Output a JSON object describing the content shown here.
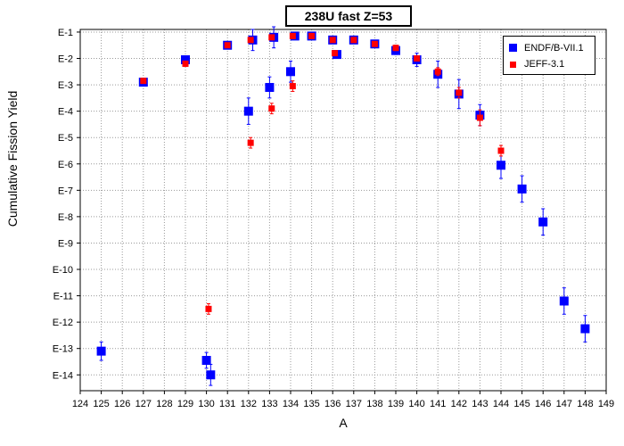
{
  "chart_data": {
    "type": "scatter",
    "title": "238U fast Z=53",
    "xlabel": "A",
    "ylabel": "Cumulative Fission Yield",
    "xlim": [
      124,
      149
    ],
    "ylim_exponent": [
      -14.6,
      -0.9
    ],
    "y_scale": "log",
    "x_ticks": [
      124,
      125,
      126,
      127,
      128,
      129,
      130,
      131,
      132,
      133,
      134,
      135,
      136,
      137,
      138,
      139,
      140,
      141,
      142,
      143,
      144,
      145,
      146,
      147,
      148,
      149
    ],
    "y_tick_labels": [
      "E-1",
      "E-2",
      "E-3",
      "E-4",
      "E-5",
      "E-6",
      "E-7",
      "E-8",
      "E-9",
      "E-10",
      "E-11",
      "E-12",
      "E-13",
      "E-14"
    ],
    "grid": true,
    "legend_position": "top-right",
    "series": [
      {
        "name": "ENDF/B-VII.1",
        "color": "#0000ff",
        "marker": "square-large",
        "points": [
          {
            "x": 125,
            "logy": -13.1,
            "err": 0.35
          },
          {
            "x": 127,
            "logy": -2.9,
            "err": 0.1
          },
          {
            "x": 129,
            "logy": -2.05,
            "err": 0.15
          },
          {
            "x": 130,
            "logy": -13.45,
            "err": 0.3
          },
          {
            "x": 130.2,
            "logy": -14.0,
            "err": 0.4
          },
          {
            "x": 131,
            "logy": -1.5,
            "err": 0.1
          },
          {
            "x": 132,
            "logy": -4.0,
            "err": 0.5
          },
          {
            "x": 132.2,
            "logy": -1.3,
            "err": 0.4
          },
          {
            "x": 133,
            "logy": -3.1,
            "err": 0.4
          },
          {
            "x": 133.2,
            "logy": -1.2,
            "err": 0.4
          },
          {
            "x": 134,
            "logy": -2.5,
            "err": 0.4
          },
          {
            "x": 134.2,
            "logy": -1.15,
            "err": 0.1
          },
          {
            "x": 135,
            "logy": -1.15,
            "err": 0.1
          },
          {
            "x": 136,
            "logy": -1.3,
            "err": 0.1
          },
          {
            "x": 136.2,
            "logy": -1.85,
            "err": 0.1
          },
          {
            "x": 137,
            "logy": -1.3,
            "err": 0.1
          },
          {
            "x": 138,
            "logy": -1.45,
            "err": 0.1
          },
          {
            "x": 139,
            "logy": -1.7,
            "err": 0.15
          },
          {
            "x": 140,
            "logy": -2.05,
            "err": 0.25
          },
          {
            "x": 141,
            "logy": -2.6,
            "err": 0.5
          },
          {
            "x": 142,
            "logy": -3.35,
            "err": 0.55
          },
          {
            "x": 143,
            "logy": -4.15,
            "err": 0.4
          },
          {
            "x": 144,
            "logy": -6.05,
            "err": 0.5
          },
          {
            "x": 145,
            "logy": -6.95,
            "err": 0.5
          },
          {
            "x": 146,
            "logy": -8.2,
            "err": 0.5
          },
          {
            "x": 147,
            "logy": -11.2,
            "err": 0.5
          },
          {
            "x": 148,
            "logy": -12.25,
            "err": 0.5
          }
        ]
      },
      {
        "name": "JEFF-3.1",
        "color": "#ff0000",
        "marker": "square-small",
        "points": [
          {
            "x": 127,
            "logy": -2.85,
            "err": 0.05
          },
          {
            "x": 129,
            "logy": -2.2,
            "err": 0.1
          },
          {
            "x": 130.1,
            "logy": -11.5,
            "err": 0.2
          },
          {
            "x": 131,
            "logy": -1.5,
            "err": 0.05
          },
          {
            "x": 132.1,
            "logy": -5.2,
            "err": 0.2
          },
          {
            "x": 132.1,
            "logy": -1.3,
            "err": 0.05
          },
          {
            "x": 133.1,
            "logy": -3.9,
            "err": 0.2
          },
          {
            "x": 133.1,
            "logy": -1.2,
            "err": 0.05
          },
          {
            "x": 134.1,
            "logy": -3.05,
            "err": 0.2
          },
          {
            "x": 134.1,
            "logy": -1.15,
            "err": 0.05
          },
          {
            "x": 135,
            "logy": -1.15,
            "err": 0.05
          },
          {
            "x": 136,
            "logy": -1.3,
            "err": 0.05
          },
          {
            "x": 136.1,
            "logy": -1.8,
            "err": 0.05
          },
          {
            "x": 137,
            "logy": -1.3,
            "err": 0.05
          },
          {
            "x": 138,
            "logy": -1.45,
            "err": 0.05
          },
          {
            "x": 139,
            "logy": -1.6,
            "err": 0.1
          },
          {
            "x": 140,
            "logy": -2.0,
            "err": 0.1
          },
          {
            "x": 141,
            "logy": -2.5,
            "err": 0.15
          },
          {
            "x": 142,
            "logy": -3.3,
            "err": 0.2
          },
          {
            "x": 143,
            "logy": -4.25,
            "err": 0.3
          },
          {
            "x": 144,
            "logy": -5.5,
            "err": 0.2
          }
        ]
      }
    ]
  }
}
